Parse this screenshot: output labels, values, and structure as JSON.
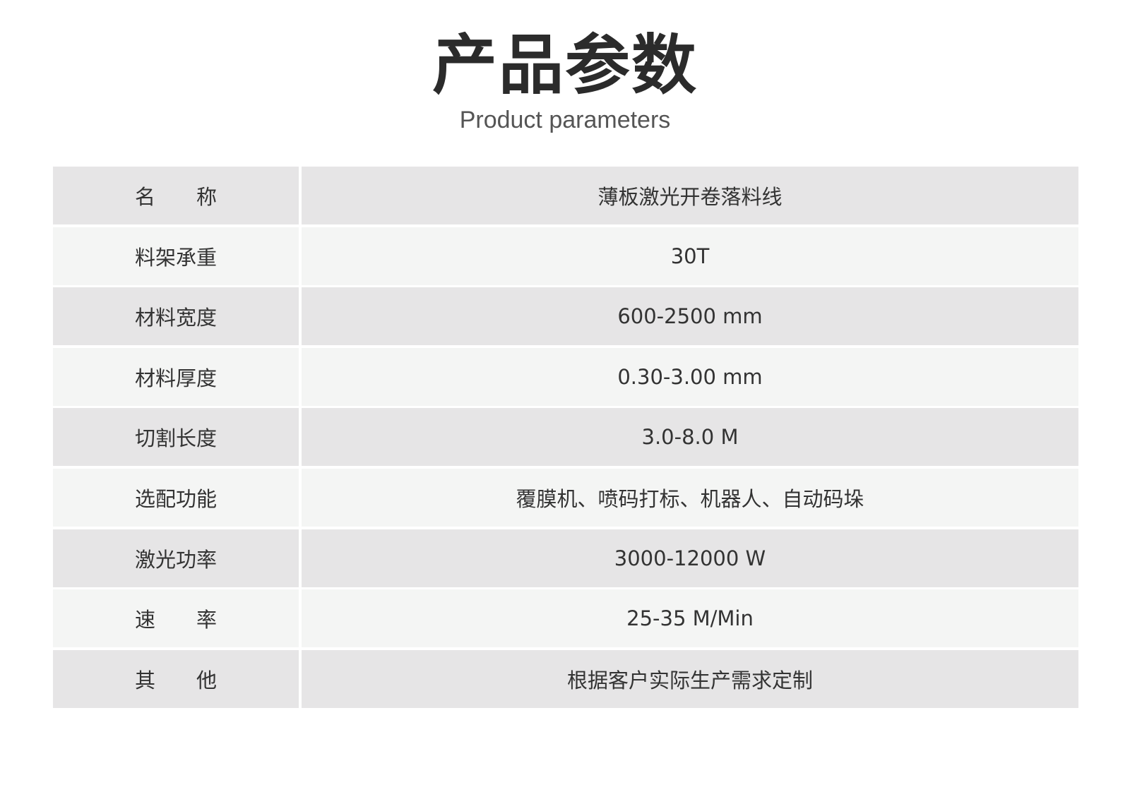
{
  "header": {
    "title": "产品参数",
    "subtitle": "Product parameters"
  },
  "table": {
    "rows": [
      {
        "label": "名　　称",
        "value": "薄板激光开卷落料线"
      },
      {
        "label": "料架承重",
        "value": "30T"
      },
      {
        "label": "材料宽度",
        "value": "600-2500 mm"
      },
      {
        "label": "材料厚度",
        "value": "0.30-3.00 mm"
      },
      {
        "label": "切割长度",
        "value": "3.0-8.0 M"
      },
      {
        "label": "选配功能",
        "value": "覆膜机、喷码打标、机器人、自动码垛"
      },
      {
        "label": "激光功率",
        "value": "3000-12000 W"
      },
      {
        "label": "速　　率",
        "value": "25-35 M/Min"
      },
      {
        "label": "其　　他",
        "value": "根据客户实际生产需求定制"
      }
    ]
  },
  "colors": {
    "row_odd": "#e6e5e6",
    "row_even": "#f4f5f4"
  }
}
